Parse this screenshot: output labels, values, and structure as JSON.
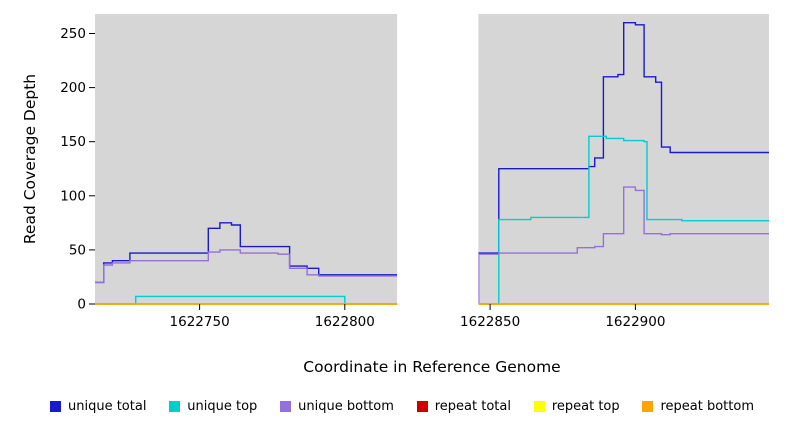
{
  "chart_data": {
    "type": "line",
    "subtype": "step-coverage",
    "title": "",
    "xlabel": "Coordinate in Reference Genome",
    "ylabel": "Read Coverage Depth",
    "xlim": [
      1622714,
      1622946
    ],
    "ylim": [
      0,
      268
    ],
    "x_ticks": [
      1622750,
      1622800,
      1622850,
      1622900
    ],
    "y_ticks": [
      0,
      50,
      100,
      150,
      200,
      250
    ],
    "grid": false,
    "legend_position": "bottom",
    "panel_background": "#d6d6d6",
    "gap_region": {
      "x_start": 1622818,
      "x_end": 1622846,
      "color": "#ffffff"
    },
    "series": [
      {
        "name": "unique total",
        "color": "#1a1acd",
        "segments": [
          [
            [
              1622714,
              20
            ],
            [
              1622717,
              38
            ],
            [
              1622720,
              40
            ],
            [
              1622726,
              47
            ],
            [
              1622753,
              70
            ],
            [
              1622757,
              75
            ],
            [
              1622761,
              73
            ],
            [
              1622764,
              53
            ],
            [
              1622781,
              35
            ],
            [
              1622787,
              33
            ],
            [
              1622791,
              27
            ],
            [
              1622818,
              27
            ]
          ],
          [
            [
              1622846,
              0
            ],
            [
              1622846,
              47
            ],
            [
              1622853,
              125
            ],
            [
              1622884,
              127
            ],
            [
              1622886,
              135
            ],
            [
              1622889,
              210
            ],
            [
              1622894,
              212
            ],
            [
              1622896,
              260
            ],
            [
              1622900,
              258
            ],
            [
              1622903,
              210
            ],
            [
              1622907,
              205
            ],
            [
              1622909,
              145
            ],
            [
              1622912,
              140
            ],
            [
              1622946,
              140
            ]
          ]
        ]
      },
      {
        "name": "unique top",
        "color": "#00cdcd",
        "segments": [
          [
            [
              1622714,
              0
            ],
            [
              1622728,
              7
            ],
            [
              1622800,
              0
            ],
            [
              1622818,
              0
            ]
          ],
          [
            [
              1622846,
              0
            ],
            [
              1622853,
              78
            ],
            [
              1622864,
              80
            ],
            [
              1622884,
              155
            ],
            [
              1622890,
              153
            ],
            [
              1622896,
              151
            ],
            [
              1622903,
              150
            ],
            [
              1622904,
              78
            ],
            [
              1622916,
              77
            ],
            [
              1622946,
              77
            ]
          ]
        ]
      },
      {
        "name": "unique bottom",
        "color": "#9370db",
        "segments": [
          [
            [
              1622714,
              20
            ],
            [
              1622717,
              36
            ],
            [
              1622720,
              38
            ],
            [
              1622726,
              40
            ],
            [
              1622753,
              48
            ],
            [
              1622757,
              50
            ],
            [
              1622764,
              47
            ],
            [
              1622777,
              46
            ],
            [
              1622781,
              33
            ],
            [
              1622787,
              27
            ],
            [
              1622791,
              26
            ],
            [
              1622818,
              26
            ]
          ],
          [
            [
              1622846,
              0
            ],
            [
              1622846,
              46
            ],
            [
              1622853,
              47
            ],
            [
              1622880,
              52
            ],
            [
              1622886,
              53
            ],
            [
              1622889,
              65
            ],
            [
              1622896,
              108
            ],
            [
              1622900,
              105
            ],
            [
              1622903,
              65
            ],
            [
              1622909,
              64
            ],
            [
              1622912,
              65
            ],
            [
              1622946,
              65
            ]
          ]
        ]
      },
      {
        "name": "repeat total",
        "color": "#cd0000",
        "segments": [
          [
            [
              1622714,
              0
            ],
            [
              1622818,
              0
            ]
          ],
          [
            [
              1622846,
              0
            ],
            [
              1622946,
              0
            ]
          ]
        ]
      },
      {
        "name": "repeat top",
        "color": "#ffff00",
        "segments": [
          [
            [
              1622714,
              0
            ],
            [
              1622818,
              0
            ]
          ],
          [
            [
              1622846,
              0
            ],
            [
              1622946,
              0
            ]
          ]
        ]
      },
      {
        "name": "repeat bottom",
        "color": "#ffa500",
        "segments": [
          [
            [
              1622714,
              0
            ],
            [
              1622818,
              0
            ]
          ],
          [
            [
              1622846,
              0
            ],
            [
              1622946,
              0
            ]
          ]
        ]
      }
    ]
  }
}
